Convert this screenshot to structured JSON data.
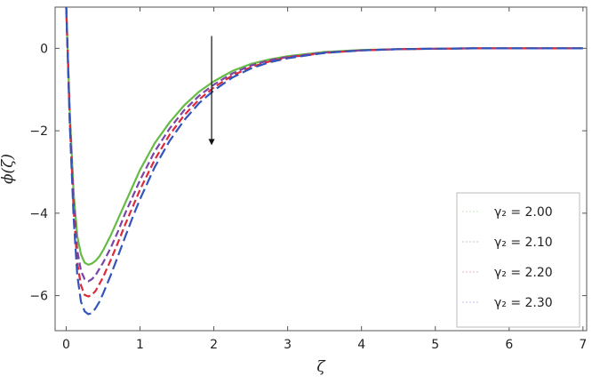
{
  "chart_data": {
    "type": "line",
    "title": "",
    "xlabel": "ζ",
    "ylabel": "ϕ(ζ)",
    "xlim": [
      -0.15,
      7.05
    ],
    "ylim": [
      -6.85,
      1.0
    ],
    "xticks": [
      0,
      1,
      2,
      3,
      4,
      5,
      6,
      7
    ],
    "yticks": [
      0,
      -2,
      -4,
      -6
    ],
    "x": [
      0,
      0.05,
      0.1,
      0.15,
      0.2,
      0.25,
      0.3,
      0.35,
      0.4,
      0.45,
      0.5,
      0.6,
      0.7,
      0.8,
      0.9,
      1.0,
      1.2,
      1.4,
      1.6,
      1.8,
      2.0,
      2.25,
      2.5,
      2.75,
      3.0,
      3.5,
      4.0,
      4.5,
      5.0,
      5.5,
      6.0,
      6.5,
      7.0
    ],
    "series": [
      {
        "name": "γ₂ = 2.00",
        "color": "#66bb44",
        "dash": "solid",
        "values": [
          1.0,
          -1.6,
          -3.5,
          -4.55,
          -5.0,
          -5.2,
          -5.25,
          -5.22,
          -5.15,
          -5.05,
          -4.9,
          -4.55,
          -4.15,
          -3.75,
          -3.35,
          -2.95,
          -2.3,
          -1.8,
          -1.38,
          -1.05,
          -0.8,
          -0.55,
          -0.38,
          -0.27,
          -0.19,
          -0.09,
          -0.04,
          -0.02,
          -0.01,
          0.0,
          0.0,
          0.0,
          0.0
        ]
      },
      {
        "name": "γ₂ = 2.10",
        "color": "#7744aa",
        "dash": "dashed",
        "values": [
          1.0,
          -1.7,
          -3.7,
          -4.9,
          -5.4,
          -5.6,
          -5.65,
          -5.6,
          -5.5,
          -5.35,
          -5.2,
          -4.85,
          -4.45,
          -4.0,
          -3.6,
          -3.2,
          -2.5,
          -1.95,
          -1.5,
          -1.15,
          -0.88,
          -0.61,
          -0.42,
          -0.29,
          -0.21,
          -0.1,
          -0.05,
          -0.02,
          -0.01,
          0.0,
          0.0,
          0.0,
          0.0
        ]
      },
      {
        "name": "γ₂ = 2.20",
        "color": "#dd2a3a",
        "dash": "dashed",
        "values": [
          1.0,
          -1.8,
          -3.9,
          -5.2,
          -5.75,
          -5.98,
          -6.02,
          -5.98,
          -5.88,
          -5.72,
          -5.55,
          -5.15,
          -4.72,
          -4.27,
          -3.85,
          -3.43,
          -2.7,
          -2.1,
          -1.62,
          -1.24,
          -0.95,
          -0.66,
          -0.46,
          -0.32,
          -0.22,
          -0.11,
          -0.05,
          -0.02,
          -0.01,
          0.0,
          0.0,
          0.0,
          0.0
        ]
      },
      {
        "name": "γ₂ = 2.30",
        "color": "#3355bb",
        "dash": "longdash",
        "values": [
          1.0,
          -1.9,
          -4.1,
          -5.5,
          -6.15,
          -6.38,
          -6.45,
          -6.42,
          -6.3,
          -6.15,
          -5.95,
          -5.52,
          -5.05,
          -4.57,
          -4.1,
          -3.66,
          -2.88,
          -2.25,
          -1.74,
          -1.33,
          -1.02,
          -0.71,
          -0.49,
          -0.34,
          -0.24,
          -0.11,
          -0.05,
          -0.02,
          -0.01,
          0.0,
          0.0,
          0.0,
          0.0
        ]
      }
    ],
    "annotations": [
      {
        "type": "arrow",
        "x": 1.97,
        "y_from": 0.3,
        "y_to": -2.35,
        "color": "#111111"
      }
    ],
    "legend": {
      "placement": "bottom-right",
      "labels": [
        "γ₂ = 2.00",
        "γ₂ = 2.10",
        "γ₂ = 2.20",
        "γ₂ = 2.30"
      ]
    },
    "grid": false
  }
}
